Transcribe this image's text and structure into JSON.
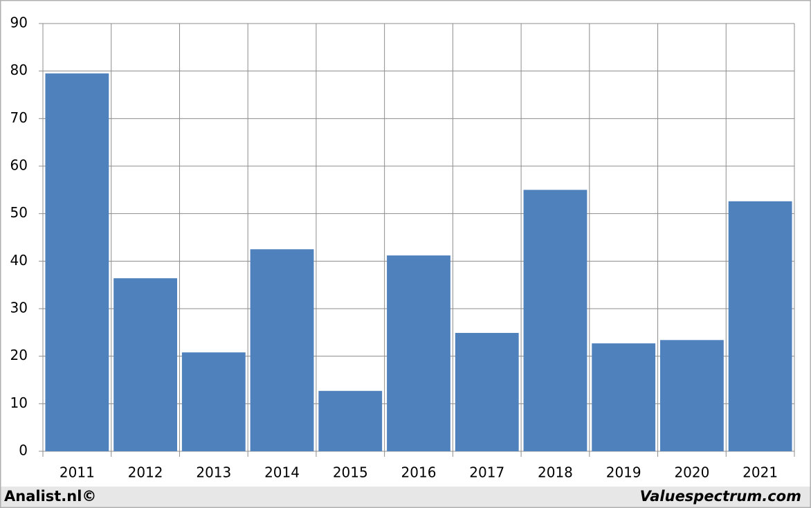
{
  "chart_data": {
    "type": "bar",
    "categories": [
      "2011",
      "2012",
      "2013",
      "2014",
      "2015",
      "2016",
      "2017",
      "2018",
      "2019",
      "2020",
      "2021"
    ],
    "values": [
      79.5,
      36.4,
      20.8,
      42.5,
      12.7,
      41.2,
      24.9,
      55.0,
      22.7,
      23.4,
      52.6
    ],
    "color": "#4f81bd",
    "ylim": [
      0,
      90
    ],
    "yticks": [
      0,
      10,
      20,
      30,
      40,
      50,
      60,
      70,
      80,
      90
    ],
    "grid": true,
    "footer_left": "Analist.nl©",
    "footer_right": "Valuespectrum.com"
  }
}
